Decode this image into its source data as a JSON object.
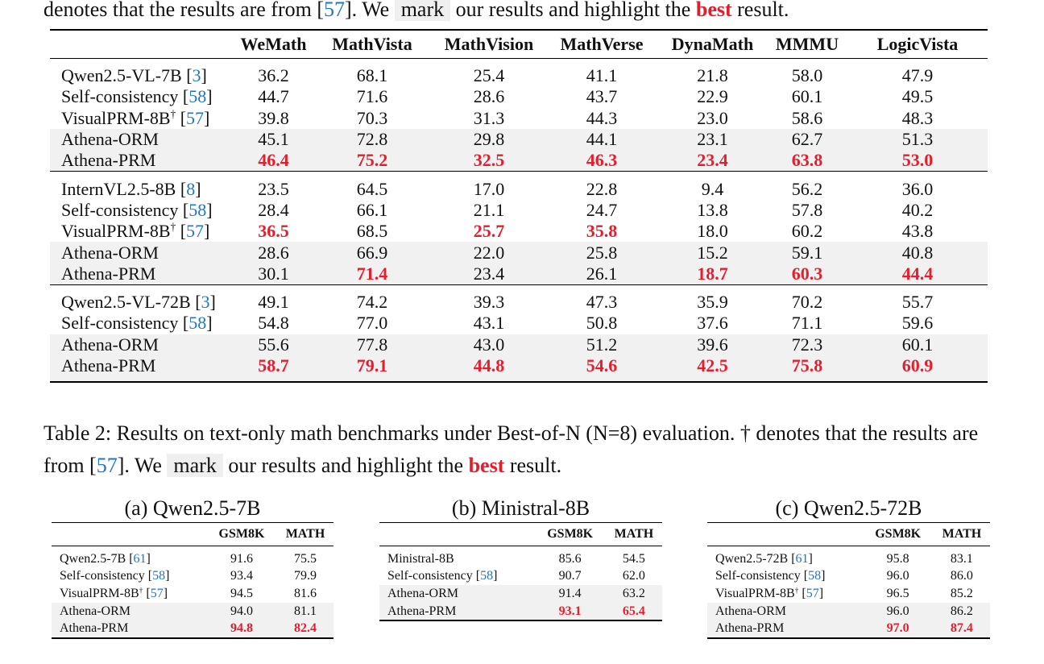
{
  "caption1_tail": {
    "prefix": "denotes that the results are from [",
    "cite": "57",
    "mid": "]. We",
    "mark": "mark",
    "middle": "our results and highlight the",
    "best": "best",
    "suffix": "result."
  },
  "table1": {
    "columns": [
      "",
      "WeMath",
      "MathVista",
      "MathVision",
      "MathVerse",
      "DynaMath",
      "MMMU",
      "LogicVista"
    ],
    "groups": [
      {
        "rows": [
          {
            "name": "Qwen2.5-VL-7B",
            "cite": "3",
            "dagger": false,
            "highlight": false,
            "values": [
              "36.2",
              "68.1",
              "25.4",
              "41.1",
              "21.8",
              "58.0",
              "47.9"
            ],
            "best": []
          },
          {
            "name": "Self-consistency",
            "cite": "58",
            "dagger": false,
            "highlight": false,
            "values": [
              "44.7",
              "71.6",
              "28.6",
              "43.7",
              "22.9",
              "60.1",
              "49.5"
            ],
            "best": []
          },
          {
            "name": "VisualPRM-8B",
            "cite": "57",
            "dagger": true,
            "highlight": false,
            "values": [
              "39.8",
              "70.3",
              "31.3",
              "44.3",
              "23.0",
              "58.6",
              "48.3"
            ],
            "best": []
          },
          {
            "name": "Athena-ORM",
            "cite": "",
            "dagger": false,
            "highlight": true,
            "values": [
              "45.1",
              "72.8",
              "29.8",
              "44.1",
              "23.1",
              "62.7",
              "51.3"
            ],
            "best": []
          },
          {
            "name": "Athena-PRM",
            "cite": "",
            "dagger": false,
            "highlight": true,
            "values": [
              "46.4",
              "75.2",
              "32.5",
              "46.3",
              "23.4",
              "63.8",
              "53.0"
            ],
            "best": [
              0,
              1,
              2,
              3,
              4,
              5,
              6
            ]
          }
        ]
      },
      {
        "rows": [
          {
            "name": "InternVL2.5-8B",
            "cite": "8",
            "dagger": false,
            "highlight": false,
            "values": [
              "23.5",
              "64.5",
              "17.0",
              "22.8",
              "9.4",
              "56.2",
              "36.0"
            ],
            "best": []
          },
          {
            "name": "Self-consistency",
            "cite": "58",
            "dagger": false,
            "highlight": false,
            "values": [
              "28.4",
              "66.1",
              "21.1",
              "24.7",
              "13.8",
              "57.8",
              "40.2"
            ],
            "best": []
          },
          {
            "name": "VisualPRM-8B",
            "cite": "57",
            "dagger": true,
            "highlight": false,
            "values": [
              "36.5",
              "68.5",
              "25.7",
              "35.8",
              "18.0",
              "60.2",
              "43.8"
            ],
            "best": [
              0,
              2,
              3
            ]
          },
          {
            "name": "Athena-ORM",
            "cite": "",
            "dagger": false,
            "highlight": true,
            "values": [
              "28.6",
              "66.9",
              "22.0",
              "25.8",
              "15.2",
              "59.1",
              "40.8"
            ],
            "best": []
          },
          {
            "name": "Athena-PRM",
            "cite": "",
            "dagger": false,
            "highlight": true,
            "values": [
              "30.1",
              "71.4",
              "23.4",
              "26.1",
              "18.7",
              "60.3",
              "44.4"
            ],
            "best": [
              1,
              4,
              5,
              6
            ]
          }
        ]
      },
      {
        "rows": [
          {
            "name": "Qwen2.5-VL-72B",
            "cite": "3",
            "dagger": false,
            "highlight": false,
            "values": [
              "49.1",
              "74.2",
              "39.3",
              "47.3",
              "35.9",
              "70.2",
              "55.7"
            ],
            "best": []
          },
          {
            "name": "Self-consistency",
            "cite": "58",
            "dagger": false,
            "highlight": false,
            "values": [
              "54.8",
              "77.0",
              "43.1",
              "50.8",
              "37.6",
              "71.1",
              "59.6"
            ],
            "best": []
          },
          {
            "name": "Athena-ORM",
            "cite": "",
            "dagger": false,
            "highlight": true,
            "values": [
              "55.6",
              "77.8",
              "43.0",
              "51.2",
              "39.6",
              "72.3",
              "60.1"
            ],
            "best": []
          },
          {
            "name": "Athena-PRM",
            "cite": "",
            "dagger": false,
            "highlight": true,
            "values": [
              "58.7",
              "79.1",
              "44.8",
              "54.6",
              "42.5",
              "75.8",
              "60.9"
            ],
            "best": [
              0,
              1,
              2,
              3,
              4,
              5,
              6
            ]
          }
        ]
      }
    ]
  },
  "caption2": {
    "label": "Table 2:",
    "text": "Results on text-only math benchmarks under Best-of-N (N=8) evaluation. † denotes that the results are from [",
    "cite": "57",
    "mid": "]. We",
    "mark": "mark",
    "middle": "our results and highlight the",
    "best": "best",
    "suffix": "result."
  },
  "subtables": [
    {
      "title": "(a) Qwen2.5-7B",
      "columns": [
        "",
        "GSM8K",
        "MATH"
      ],
      "rows": [
        {
          "name": "Qwen2.5-7B",
          "cite": "61",
          "dagger": false,
          "highlight": false,
          "values": [
            "91.6",
            "75.5"
          ],
          "best": []
        },
        {
          "name": "Self-consistency",
          "cite": "58",
          "dagger": false,
          "highlight": false,
          "values": [
            "93.4",
            "79.9"
          ],
          "best": []
        },
        {
          "name": "VisualPRM-8B",
          "cite": "57",
          "dagger": true,
          "highlight": false,
          "values": [
            "94.5",
            "81.6"
          ],
          "best": []
        },
        {
          "name": "Athena-ORM",
          "cite": "",
          "dagger": false,
          "highlight": true,
          "values": [
            "94.0",
            "81.1"
          ],
          "best": []
        },
        {
          "name": "Athena-PRM",
          "cite": "",
          "dagger": false,
          "highlight": true,
          "values": [
            "94.8",
            "82.4"
          ],
          "best": [
            0,
            1
          ]
        }
      ]
    },
    {
      "title": "(b) Ministral-8B",
      "columns": [
        "",
        "GSM8K",
        "MATH"
      ],
      "rows": [
        {
          "name": "Ministral-8B",
          "cite": "",
          "dagger": false,
          "highlight": false,
          "values": [
            "85.6",
            "54.5"
          ],
          "best": []
        },
        {
          "name": "Self-consistency",
          "cite": "58",
          "dagger": false,
          "highlight": false,
          "values": [
            "90.7",
            "62.0"
          ],
          "best": []
        },
        {
          "name": "Athena-ORM",
          "cite": "",
          "dagger": false,
          "highlight": true,
          "values": [
            "91.4",
            "63.2"
          ],
          "best": []
        },
        {
          "name": "Athena-PRM",
          "cite": "",
          "dagger": false,
          "highlight": true,
          "values": [
            "93.1",
            "65.4"
          ],
          "best": [
            0,
            1
          ]
        }
      ]
    },
    {
      "title": "(c) Qwen2.5-72B",
      "columns": [
        "",
        "GSM8K",
        "MATH"
      ],
      "rows": [
        {
          "name": "Qwen2.5-72B",
          "cite": "61",
          "dagger": false,
          "highlight": false,
          "values": [
            "95.8",
            "83.1"
          ],
          "best": []
        },
        {
          "name": "Self-consistency",
          "cite": "58",
          "dagger": false,
          "highlight": false,
          "values": [
            "96.0",
            "86.0"
          ],
          "best": []
        },
        {
          "name": "VisualPRM-8B",
          "cite": "57",
          "dagger": true,
          "highlight": false,
          "values": [
            "96.5",
            "85.2"
          ],
          "best": []
        },
        {
          "name": "Athena-ORM",
          "cite": "",
          "dagger": false,
          "highlight": true,
          "values": [
            "96.0",
            "86.2"
          ],
          "best": []
        },
        {
          "name": "Athena-PRM",
          "cite": "",
          "dagger": false,
          "highlight": true,
          "values": [
            "97.0",
            "87.4"
          ],
          "best": [
            0,
            1
          ]
        }
      ]
    }
  ]
}
